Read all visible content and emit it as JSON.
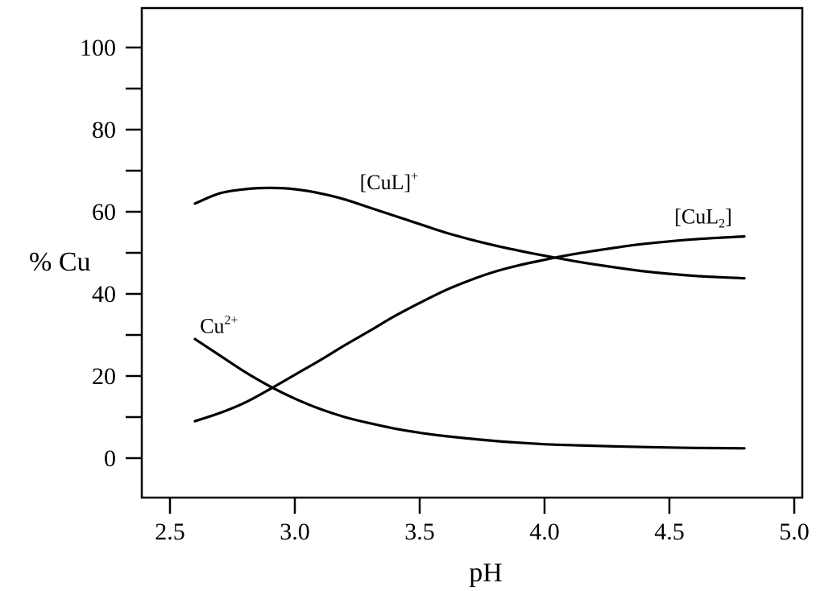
{
  "chart_data": {
    "type": "line",
    "xlabel": "pH",
    "ylabel": "% Cu",
    "xlim": [
      2.4,
      5.02
    ],
    "ylim": [
      -9,
      110
    ],
    "xticks": [
      2.5,
      3.0,
      3.5,
      4.0,
      4.5,
      5.0
    ],
    "xtick_labels": [
      "2.5",
      "3.0",
      "3.5",
      "4.0",
      "4.5",
      "5.0"
    ],
    "yticks": [
      0,
      20,
      40,
      60,
      80,
      100
    ],
    "ytick_labels": [
      "0",
      "20",
      "40",
      "60",
      "80",
      "100"
    ],
    "yminor_ticks": [
      10,
      30,
      50,
      70,
      90
    ],
    "grid": false,
    "legend": "none",
    "series": [
      {
        "name": "Cu2+",
        "label_base": "Cu",
        "label_sup": "2+",
        "label_sub": "",
        "label_tail": "",
        "x": [
          2.6,
          2.7,
          2.8,
          2.9,
          3.0,
          3.1,
          3.2,
          3.3,
          3.4,
          3.5,
          3.6,
          3.8,
          4.0,
          4.2,
          4.4,
          4.6,
          4.8
        ],
        "y": [
          29,
          25,
          21,
          17.5,
          14.5,
          12,
          10,
          8.5,
          7.2,
          6.2,
          5.4,
          4.2,
          3.4,
          3.0,
          2.7,
          2.5,
          2.4
        ]
      },
      {
        "name": "[CuL]+",
        "label_base": "[CuL]",
        "label_sup": "+",
        "label_sub": "",
        "label_tail": "",
        "x": [
          2.6,
          2.7,
          2.8,
          2.9,
          3.0,
          3.1,
          3.2,
          3.3,
          3.4,
          3.5,
          3.6,
          3.7,
          3.8,
          3.9,
          4.0,
          4.1,
          4.2,
          4.4,
          4.6,
          4.8
        ],
        "y": [
          62,
          64.5,
          65.5,
          65.8,
          65.5,
          64.5,
          63,
          61,
          59,
          57,
          55,
          53.3,
          51.8,
          50.5,
          49.3,
          48.2,
          47.2,
          45.5,
          44.4,
          43.8
        ]
      },
      {
        "name": "[CuL2]",
        "label_base": "[CuL",
        "label_sup": "",
        "label_sub": "2",
        "label_tail": "]",
        "x": [
          2.6,
          2.7,
          2.8,
          2.9,
          3.0,
          3.1,
          3.2,
          3.3,
          3.4,
          3.5,
          3.6,
          3.7,
          3.8,
          3.9,
          4.0,
          4.1,
          4.2,
          4.3,
          4.4,
          4.6,
          4.8
        ],
        "y": [
          9,
          11,
          13.5,
          16.8,
          20.3,
          23.8,
          27.5,
          31,
          34.6,
          37.8,
          40.8,
          43.3,
          45.4,
          47,
          48.3,
          49.5,
          50.5,
          51.4,
          52.2,
          53.3,
          54
        ]
      }
    ]
  }
}
